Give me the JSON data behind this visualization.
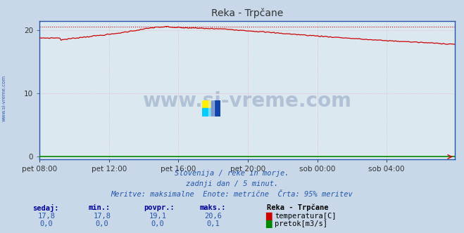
{
  "title": "Reka - Trpčane",
  "background_color": "#c8d8e8",
  "plot_bg_color": "#dce8f0",
  "grid_color": "#e8b0b0",
  "spine_color": "#2255aa",
  "temp_color": "#cc0000",
  "flow_color": "#008800",
  "dotted_line_color": "#cc0000",
  "dotted_line_y": 20.6,
  "y_max": 21.5,
  "y_min": -0.5,
  "y_ticks": [
    0,
    10,
    20
  ],
  "x_ticks_labels": [
    "pet 08:00",
    "pet 12:00",
    "pet 16:00",
    "pet 20:00",
    "sob 00:00",
    "sob 04:00"
  ],
  "x_ticks_pos": [
    0,
    48,
    96,
    144,
    192,
    240
  ],
  "total_points": 288,
  "subtitle1": "Slovenija / reke in morje.",
  "subtitle2": "zadnji dan / 5 minut.",
  "subtitle3": "Meritve: maksimalne  Enote: metrične  Črta: 95% meritev",
  "table_headers": [
    "sedaj:",
    "min.:",
    "povpr.:",
    "maks.:"
  ],
  "table_temp": [
    "17,8",
    "17,8",
    "19,1",
    "20,6"
  ],
  "table_flow": [
    "0,0",
    "0,0",
    "0,0",
    "0,1"
  ],
  "legend_title": "Reka - Trpčane",
  "legend_temp": "temperatura[C]",
  "legend_flow": "pretok[m3/s]",
  "watermark": "www.si-vreme.com",
  "watermark_color": "#1a3a7a",
  "sidebar_text": "www.si-vreme.com",
  "sidebar_color": "#2255aa",
  "text_color": "#2255aa",
  "header_color": "#000099",
  "value_color": "#2255aa"
}
